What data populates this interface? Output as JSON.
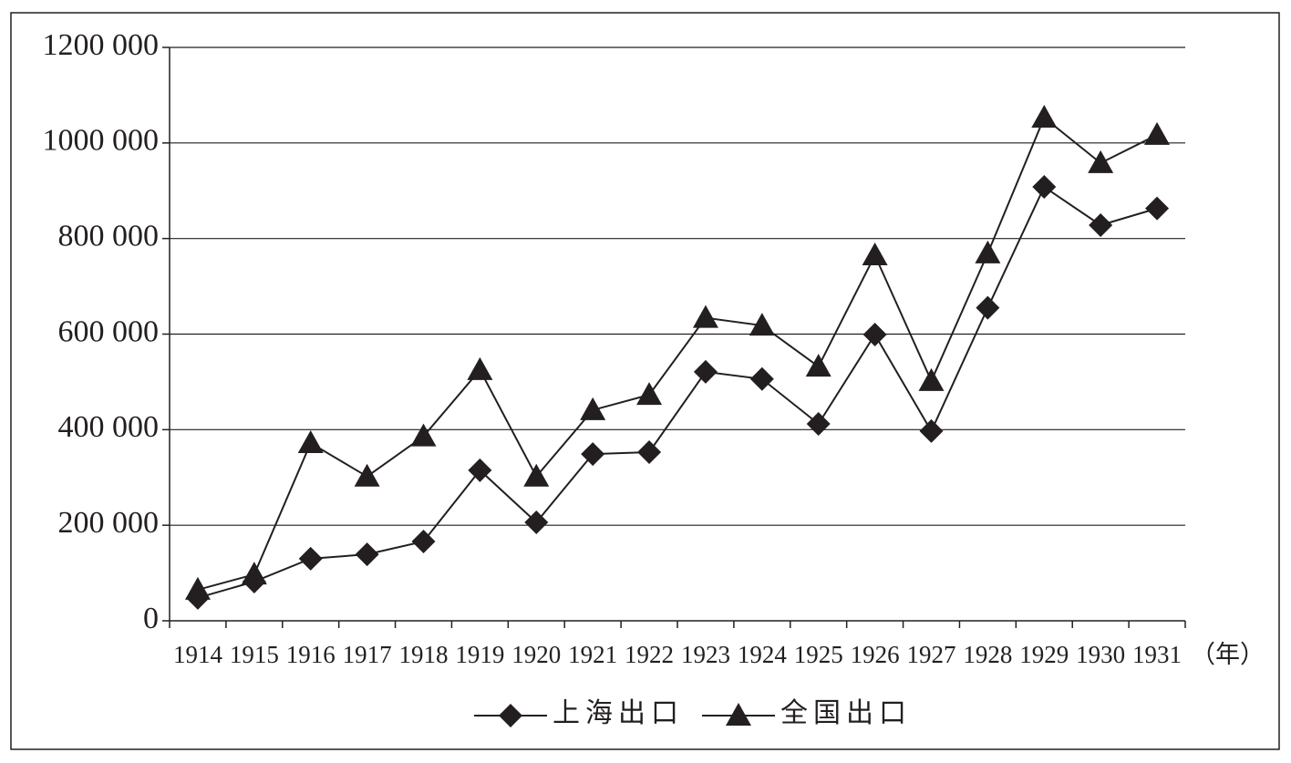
{
  "chart_data": {
    "type": "line",
    "categories": [
      "1914",
      "1915",
      "1916",
      "1917",
      "1918",
      "1919",
      "1920",
      "1921",
      "1922",
      "1923",
      "1924",
      "1925",
      "1926",
      "1927",
      "1928",
      "1929",
      "1930",
      "1931"
    ],
    "x_unit": "（年）",
    "series": [
      {
        "name": "上海出口",
        "color": "#231f20",
        "marker": "diamond",
        "values": [
          48000,
          82000,
          130000,
          139000,
          166000,
          315000,
          206000,
          349000,
          353000,
          521000,
          506000,
          412000,
          599000,
          397000,
          655000,
          908000,
          828000,
          863000
        ]
      },
      {
        "name": "全国出口",
        "color": "#231f20",
        "marker": "triangle",
        "values": [
          65000,
          97000,
          372000,
          302000,
          386000,
          525000,
          302000,
          441000,
          473000,
          634000,
          618000,
          532000,
          765000,
          502000,
          769000,
          1053000,
          958000,
          1017000
        ]
      }
    ],
    "ylim": [
      0,
      1200000
    ],
    "yticks": [
      0,
      {
        "value": 200000,
        "label": "200 000"
      },
      {
        "value": 400000,
        "label": "400 000"
      },
      {
        "value": 600000,
        "label": "600 000"
      },
      {
        "value": 800000,
        "label": "800 000"
      },
      {
        "value": 1000000,
        "label": "1000 000"
      },
      {
        "value": 1200000,
        "label": "1200 000"
      }
    ],
    "grid": true,
    "legend": "bottom"
  }
}
